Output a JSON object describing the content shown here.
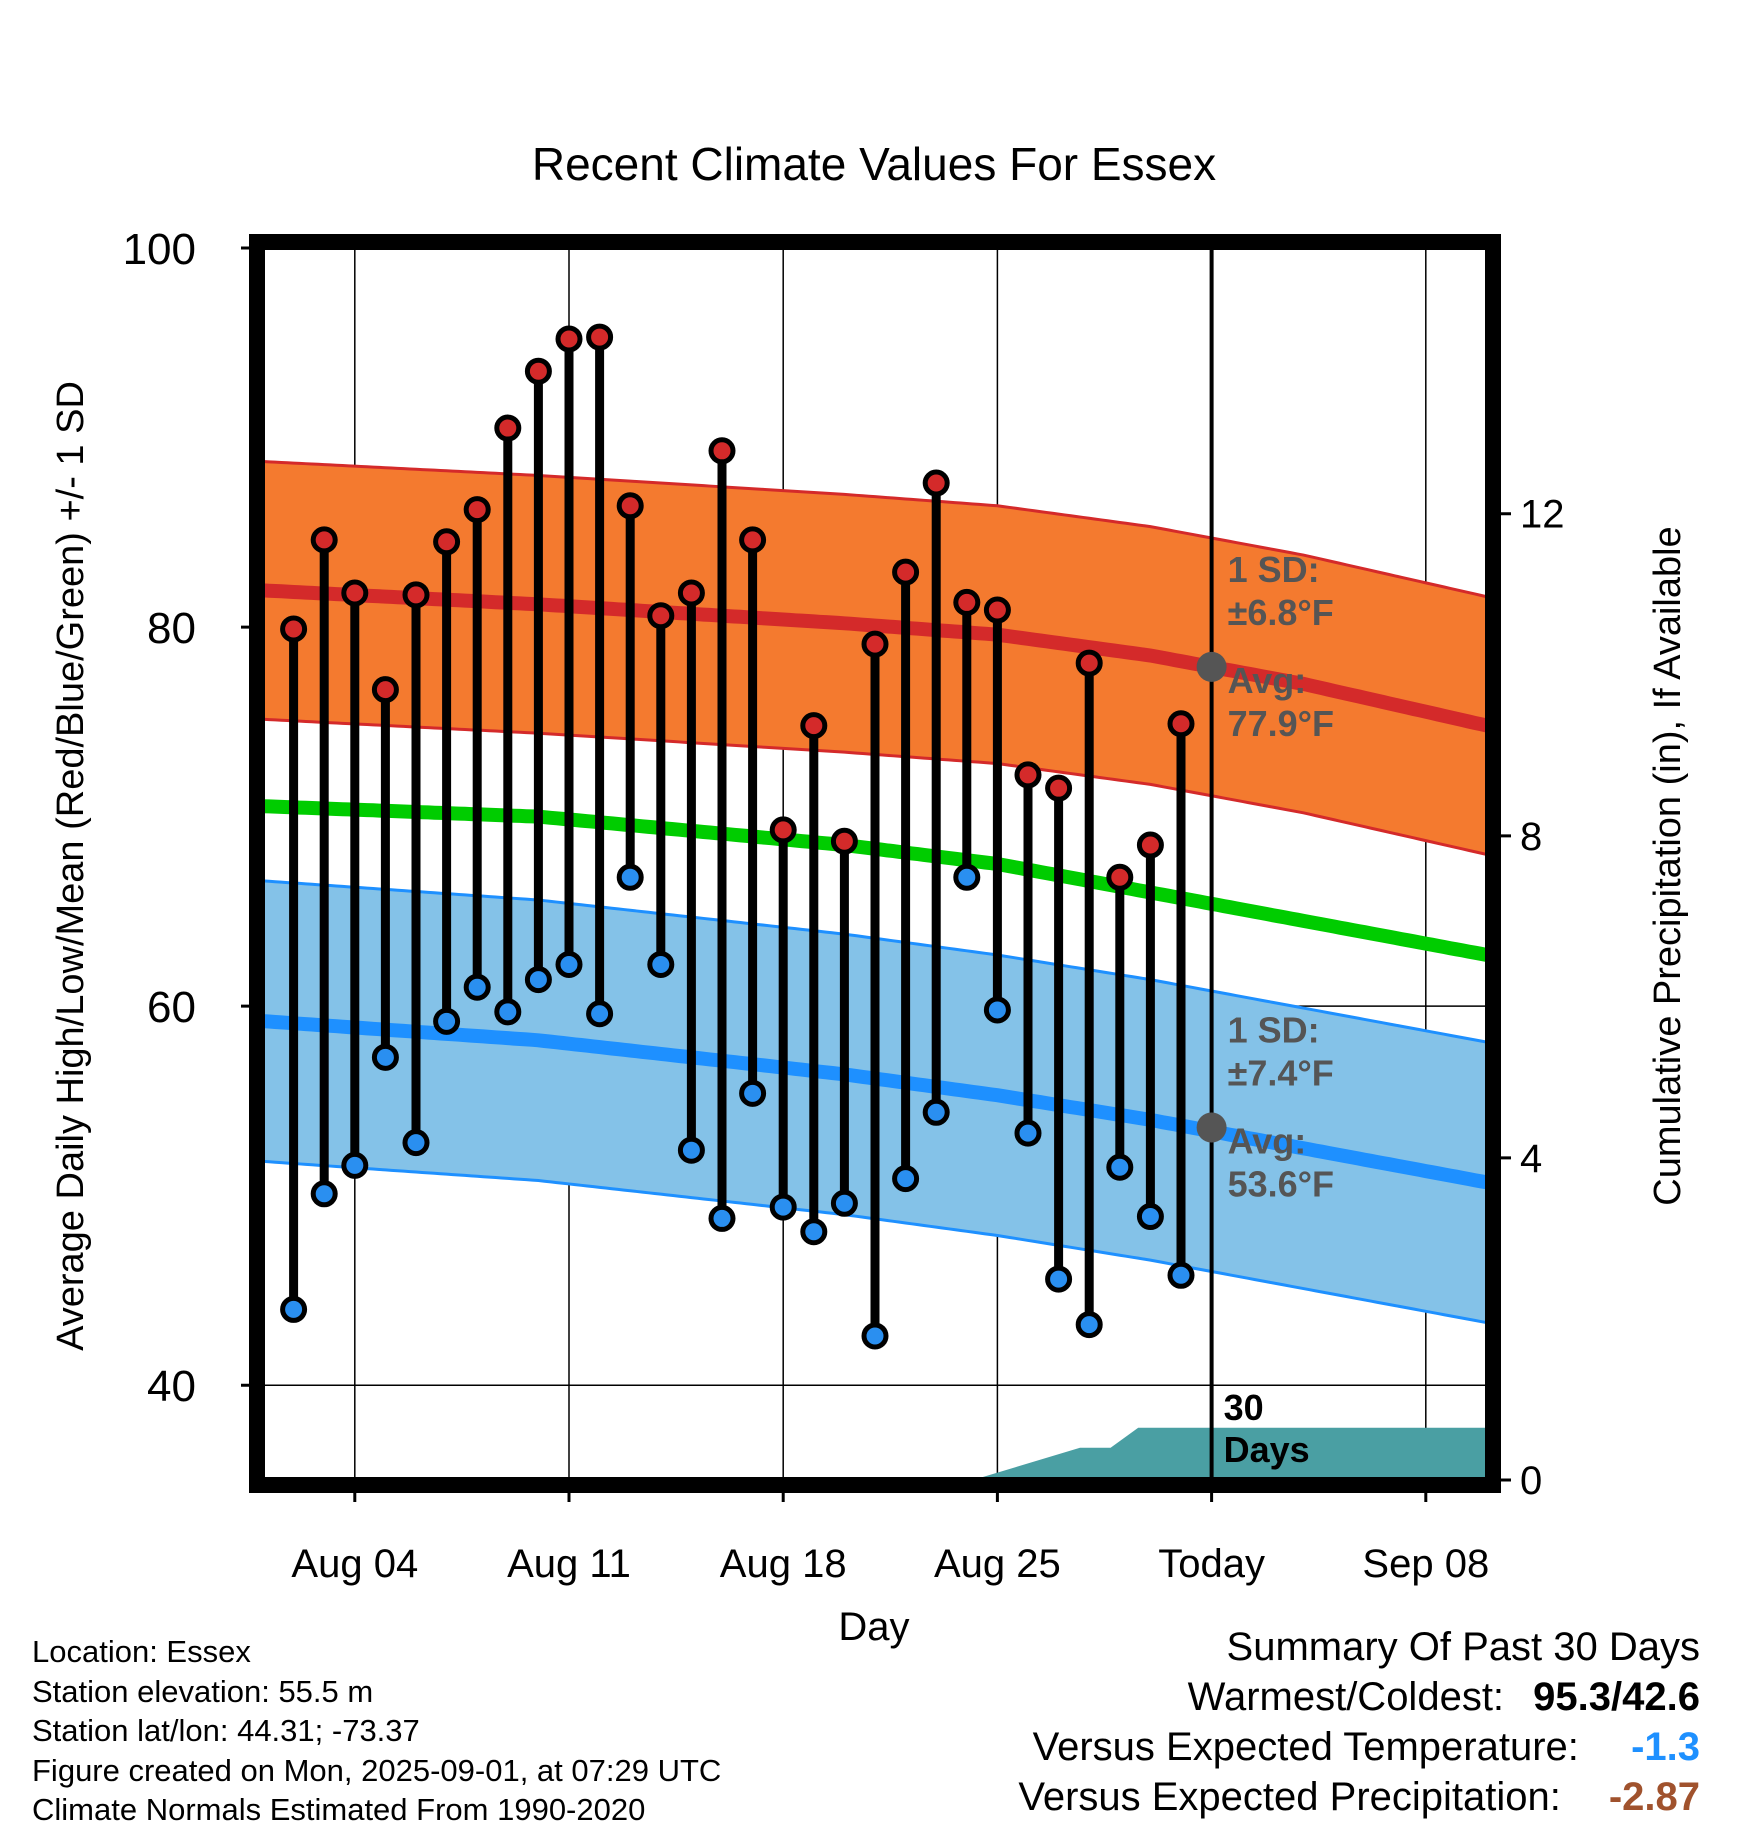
{
  "info": {
    "location": "Location: Essex",
    "elevation": "Station elevation: 55.5 m",
    "latlon": "Station lat/lon: 44.31; -73.37",
    "created": "Figure created on Mon, 2025-09-01, at 07:29 UTC",
    "normals": "Climate Normals Estimated From 1990-2020"
  },
  "summary": {
    "title": "Summary Of Past 30 Days",
    "warmest_label": "Warmest/Coldest:",
    "warmest_value": "95.3/42.6",
    "temp_label": "Versus Expected Temperature:",
    "temp_value": "-1.3",
    "temp_color": "#1e90ff",
    "precip_label": "Versus Expected Precipitation:",
    "precip_value": "-2.87",
    "precip_color": "#a0522d"
  },
  "chart_data": {
    "type": "line",
    "title": "Recent Climate Values For Essex",
    "xlabel": "Day",
    "ylabel": "Average Daily High/Low/Mean (Red/Blue/Green) +/- 1 SD",
    "y2label": "Cumulative Precipitation (in), If Available",
    "ylim": [
      35,
      100
    ],
    "y2lim": [
      0,
      15.3
    ],
    "yticks": [
      40,
      60,
      80,
      100
    ],
    "y2ticks": [
      0,
      4,
      8,
      12
    ],
    "xticks": [
      {
        "day": 4,
        "label": "Aug 04"
      },
      {
        "day": 11,
        "label": "Aug 11"
      },
      {
        "day": 18,
        "label": "Aug 18"
      },
      {
        "day": 25,
        "label": "Aug 25"
      },
      {
        "day": 32,
        "label": "Today"
      },
      {
        "day": 39,
        "label": "Sep 08"
      }
    ],
    "xlim": [
      0.2,
      41.0
    ],
    "today_day": 32,
    "window_label": "30 Days",
    "days": [
      2,
      3,
      4,
      5,
      6,
      7,
      8,
      9,
      10,
      11,
      12,
      13,
      14,
      15,
      16,
      17,
      18,
      19,
      20,
      21,
      22,
      23,
      24,
      25,
      26,
      27,
      28,
      29,
      30,
      31
    ],
    "highs": [
      79.9,
      84.6,
      81.8,
      76.7,
      81.7,
      84.5,
      86.2,
      90.5,
      93.5,
      95.2,
      95.3,
      86.4,
      80.6,
      81.8,
      89.3,
      84.6,
      69.3,
      74.8,
      68.7,
      79.1,
      82.9,
      87.6,
      81.3,
      80.9,
      72.2,
      71.5,
      78.1,
      66.8,
      68.5,
      74.9
    ],
    "lows": [
      44.0,
      50.1,
      51.6,
      57.3,
      52.8,
      59.2,
      61.0,
      59.7,
      61.4,
      62.2,
      59.6,
      66.8,
      62.2,
      52.4,
      48.8,
      55.4,
      49.4,
      48.1,
      49.6,
      42.6,
      50.9,
      54.4,
      66.8,
      59.8,
      53.3,
      45.6,
      43.2,
      51.5,
      48.9,
      45.8
    ],
    "normal_high": {
      "days": [
        0.2,
        10,
        20,
        25,
        30,
        35,
        41
      ],
      "values": [
        82.0,
        81.2,
        80.2,
        79.6,
        78.5,
        77.0,
        74.8
      ],
      "sd": 6.8
    },
    "normal_mean": {
      "days": [
        0.2,
        10,
        20,
        25,
        30,
        35,
        41
      ],
      "values": [
        70.6,
        70.0,
        68.5,
        67.5,
        66.0,
        64.5,
        62.7
      ]
    },
    "normal_low": {
      "days": [
        0.2,
        10,
        20,
        25,
        30,
        35,
        41
      ],
      "values": [
        59.3,
        58.2,
        56.4,
        55.3,
        54.0,
        52.5,
        50.7
      ],
      "sd": 7.4
    },
    "high_sd_label": "1 SD:",
    "high_sd_value": "±6.8°F",
    "high_avg_label": "Avg:",
    "high_avg_value": "77.9°F",
    "low_sd_label": "1 SD:",
    "low_sd_value": "±7.4°F",
    "low_avg_label": "Avg:",
    "low_avg_value": "53.6°F",
    "today_high_avg": 77.9,
    "today_low_avg": 53.6,
    "precip": {
      "days": [
        24.2,
        27.7,
        28.7,
        29.6,
        41.0
      ],
      "values": [
        0.0,
        0.4,
        0.4,
        0.65,
        0.65
      ]
    },
    "colors": {
      "high_band": "#f47a2f",
      "high_line": "#d42a2a",
      "mean_line": "#00cc00",
      "low_band": "#84c2e8",
      "low_line": "#1e90ff",
      "precip": "#4a9fa3",
      "high_marker": "#d42a2a",
      "low_marker": "#2a8ff0",
      "annotation": "#555555"
    }
  }
}
